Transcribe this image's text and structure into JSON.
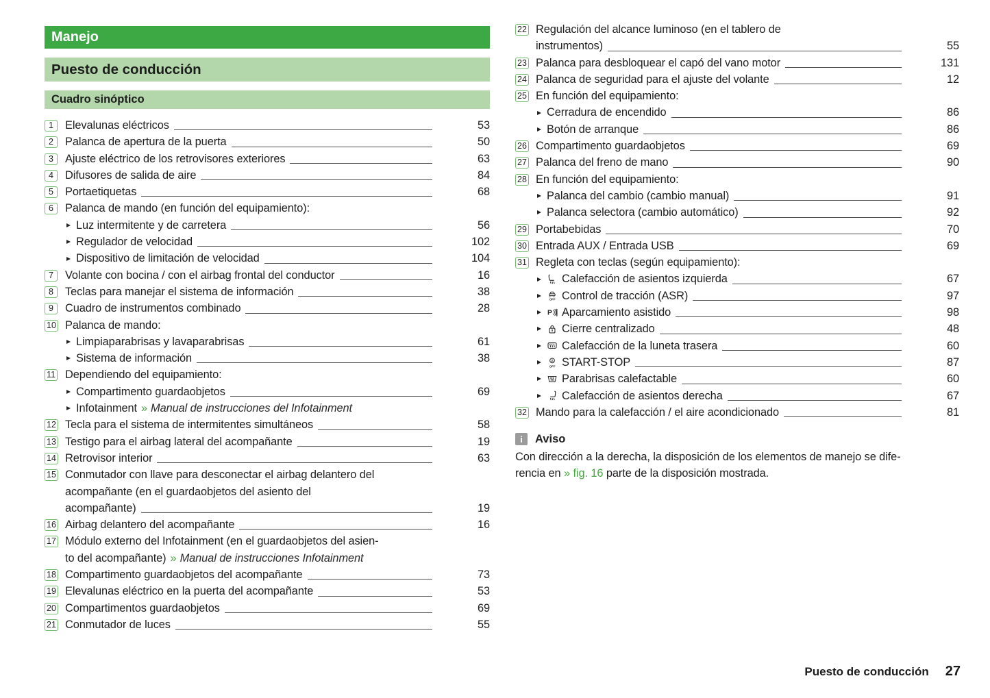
{
  "colors": {
    "brand_green": "#3CA945",
    "light_green_bar": "#B3D7AA",
    "badge_border_green": "#74BC6D",
    "link_green": "#44A73F",
    "note_icon_gray": "#9B9B9B"
  },
  "headers": {
    "chapter": "Manejo",
    "section": "Puesto de conducción",
    "subsection": "Cuadro sinóptico"
  },
  "toc_left": [
    {
      "num": "1",
      "lines": [
        "Elevalunas eléctricos"
      ],
      "page": "53"
    },
    {
      "num": "2",
      "lines": [
        "Palanca de apertura de la puerta"
      ],
      "page": "50"
    },
    {
      "num": "3",
      "lines": [
        "Ajuste eléctrico de los retrovisores exteriores"
      ],
      "page": "63"
    },
    {
      "num": "4",
      "lines": [
        "Difusores de salida de aire"
      ],
      "page": "84"
    },
    {
      "num": "5",
      "lines": [
        "Portaetiquetas"
      ],
      "page": "68"
    },
    {
      "num": "6",
      "lines": [
        "Palanca de mando (en función del equipamiento):"
      ],
      "sub": [
        {
          "text": "Luz intermitente y de carretera",
          "page": "56"
        },
        {
          "text": "Regulador de velocidad",
          "page": "102"
        },
        {
          "text": "Dispositivo de limitación de velocidad",
          "page": "104"
        }
      ]
    },
    {
      "num": "7",
      "lines": [
        "Volante con bocina / con el airbag frontal del conductor"
      ],
      "page": "16"
    },
    {
      "num": "8",
      "lines": [
        "Teclas para manejar el sistema de información"
      ],
      "page": "38"
    },
    {
      "num": "9",
      "lines": [
        "Cuadro de instrumentos combinado"
      ],
      "page": "28"
    },
    {
      "num": "10",
      "lines": [
        "Palanca de mando:"
      ],
      "sub": [
        {
          "text": "Limpiaparabrisas y lavaparabrisas",
          "page": "61"
        },
        {
          "text": "Sistema de información",
          "page": "38"
        }
      ]
    },
    {
      "num": "11",
      "lines": [
        "Dependiendo del equipamiento:"
      ],
      "sub": [
        {
          "text": "Compartimento guardaobjetos",
          "page": "69"
        },
        {
          "text": "Infotainment",
          "ref": "Manual de instrucciones del Infotainment"
        }
      ]
    },
    {
      "num": "12",
      "lines": [
        "Tecla para el sistema de intermitentes simultáneos"
      ],
      "page": "58"
    },
    {
      "num": "13",
      "lines": [
        "Testigo para el airbag lateral del acompañante"
      ],
      "page": "19"
    },
    {
      "num": "14",
      "lines": [
        "Retrovisor interior"
      ],
      "page": "63"
    },
    {
      "num": "15",
      "lines": [
        "Conmutador con llave para desconectar el airbag delantero del",
        "acompañante (en el guardaobjetos del asiento del",
        "acompañante)"
      ],
      "page": "19"
    },
    {
      "num": "16",
      "lines": [
        "Airbag delantero del acompañante"
      ],
      "page": "16"
    },
    {
      "num": "17",
      "lines": [
        "Módulo externo del Infotainment (en el guardaobjetos del asien-",
        "to del acompañante)"
      ],
      "ref": "Manual de instrucciones Infotainment"
    },
    {
      "num": "18",
      "lines": [
        "Compartimento guardaobjetos del acompañante"
      ],
      "page": "73"
    },
    {
      "num": "19",
      "lines": [
        "Elevalunas eléctrico en la puerta del acompañante"
      ],
      "page": "53"
    },
    {
      "num": "20",
      "lines": [
        "Compartimentos guardaobjetos"
      ],
      "page": "69"
    },
    {
      "num": "21",
      "lines": [
        "Conmutador de luces"
      ],
      "page": "55"
    }
  ],
  "toc_right": [
    {
      "num": "22",
      "lines": [
        "Regulación del alcance luminoso (en el tablero de",
        "instrumentos)"
      ],
      "page": "55"
    },
    {
      "num": "23",
      "lines": [
        "Palanca para desbloquear el capó del vano motor"
      ],
      "page": "131"
    },
    {
      "num": "24",
      "lines": [
        "Palanca de seguridad para el ajuste del volante"
      ],
      "page": "12"
    },
    {
      "num": "25",
      "lines": [
        "En función del equipamiento:"
      ],
      "sub": [
        {
          "text": "Cerradura de encendido",
          "page": "86"
        },
        {
          "text": "Botón de arranque",
          "page": "86"
        }
      ]
    },
    {
      "num": "26",
      "lines": [
        "Compartimento guardaobjetos"
      ],
      "page": "69"
    },
    {
      "num": "27",
      "lines": [
        "Palanca del freno de mano"
      ],
      "page": "90"
    },
    {
      "num": "28",
      "lines": [
        "En función del equipamiento:"
      ],
      "sub": [
        {
          "text": "Palanca del cambio (cambio manual)",
          "page": "91"
        },
        {
          "text": "Palanca selectora (cambio automático)",
          "page": "92"
        }
      ]
    },
    {
      "num": "29",
      "lines": [
        "Portabebidas"
      ],
      "page": "70"
    },
    {
      "num": "30",
      "lines": [
        "Entrada AUX / Entrada USB"
      ],
      "page": "69"
    },
    {
      "num": "31",
      "lines": [
        "Regleta con teclas (según equipamiento):"
      ],
      "sub": [
        {
          "icon": "seat-heating-left-icon",
          "text": "Calefacción de asientos izquierda",
          "page": "67"
        },
        {
          "icon": "asr-off-icon",
          "text": "Control de tracción (ASR)",
          "page": "97"
        },
        {
          "icon": "park-assist-icon",
          "text": "Aparcamiento asistido",
          "page": "98"
        },
        {
          "icon": "central-locking-icon",
          "text": "Cierre centralizado",
          "page": "48"
        },
        {
          "icon": "rear-window-heating-icon",
          "text": "Calefacción de la luneta trasera",
          "page": "60"
        },
        {
          "icon": "start-stop-icon",
          "text": "START-STOP",
          "page": "87"
        },
        {
          "icon": "windshield-heating-icon",
          "text": "Parabrisas calefactable",
          "page": "60"
        },
        {
          "icon": "seat-heating-right-icon",
          "text": "Calefacción de asientos derecha",
          "page": "67"
        }
      ]
    },
    {
      "num": "32",
      "lines": [
        "Mando para la calefacción / el aire acondicionado"
      ],
      "page": "81"
    }
  ],
  "note": {
    "icon_glyph": "i",
    "title": "Aviso",
    "body_line1": "Con dirección a la derecha, la disposición de los elementos de manejo se dife-",
    "body_line2": {
      "pre": "rencia en ",
      "link": "» fig. 16",
      "post": " parte de la disposición mostrada."
    }
  },
  "footer": {
    "section": "Puesto de conducción",
    "page_number": "27"
  }
}
